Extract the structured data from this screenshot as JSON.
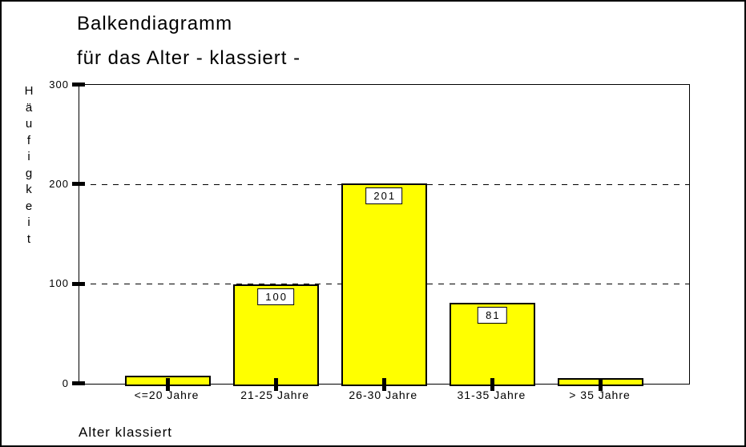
{
  "window": {
    "background": "#FFFFFF",
    "border_color": "#000000"
  },
  "chart_data": {
    "type": "bar",
    "title_line1": "Balkendiagramm",
    "title_line2": "für das Alter - klassiert -",
    "ylabel": "Häufigkeit",
    "xlabel": "Alter klassiert",
    "categories": [
      "<=20 Jahre",
      "21-25 Jahre",
      "26-30 Jahre",
      "31-35 Jahre",
      "> 35 Jahre"
    ],
    "values": [
      8,
      100,
      201,
      81,
      6
    ],
    "bar_labels": [
      "",
      "100",
      "201",
      "81",
      ""
    ],
    "ylim": [
      0,
      300
    ],
    "yticks": [
      0,
      100,
      200,
      300
    ],
    "gridlines": [
      100,
      200
    ],
    "grid_style": "dashed",
    "legend": "none",
    "bar_color": "#FFFF00",
    "axis_color": "#000000",
    "label_box_color": "#FFFFFF"
  }
}
